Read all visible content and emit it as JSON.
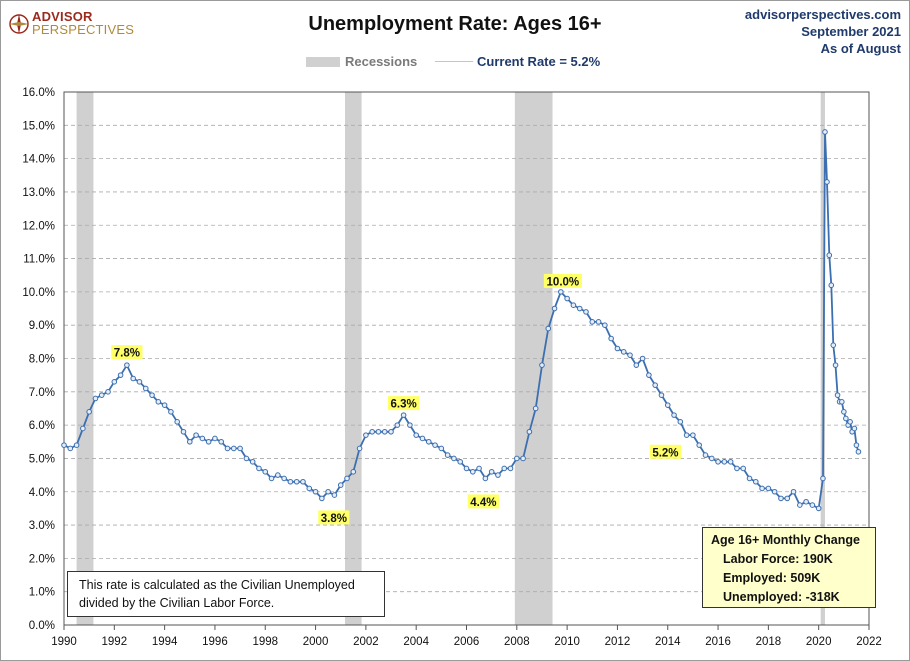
{
  "header": {
    "title": "Unemployment Rate: Ages 16+",
    "logo_line1": "ADVISOR",
    "logo_line2": "PERSPECTIVES",
    "site": "advisorperspectives.com",
    "date": "September 2021",
    "as_of": "As of August"
  },
  "legend": {
    "recessions_label": "Recessions",
    "current_label": "Current Rate = 5.2%"
  },
  "note": {
    "line1": "This rate is calculated as the Civilian Unemployed",
    "line2": "divided by the Civilian Labor Force."
  },
  "change_box": {
    "title": "Age 16+ Monthly Change",
    "labor_force": "Labor Force:  190K",
    "employed": "Employed:  509K",
    "unemployed": "Unemployed:  -318K"
  },
  "colors": {
    "line": "#3c6fb0",
    "marker_fill": "#e6eef8",
    "recession": "#d0d0d0",
    "annotation_bg": "#ffff66",
    "title_blue": "#1f3a6b"
  },
  "chart_data": {
    "type": "line",
    "title": "Unemployment Rate: Ages 16+",
    "xlim": [
      1990,
      2022
    ],
    "ylim": [
      0,
      16
    ],
    "x_ticks": [
      1990,
      1992,
      1994,
      1996,
      1998,
      2000,
      2002,
      2004,
      2006,
      2008,
      2010,
      2012,
      2014,
      2016,
      2018,
      2020,
      2022
    ],
    "y_ticks": [
      "0.0%",
      "1.0%",
      "2.0%",
      "3.0%",
      "4.0%",
      "5.0%",
      "6.0%",
      "7.0%",
      "8.0%",
      "9.0%",
      "10.0%",
      "11.0%",
      "12.0%",
      "13.0%",
      "14.0%",
      "15.0%",
      "16.0%"
    ],
    "grid": true,
    "recessions": [
      [
        1990.5,
        1991.17
      ],
      [
        2001.17,
        2001.83
      ],
      [
        2007.92,
        2009.42
      ],
      [
        2020.08,
        2020.25
      ]
    ],
    "series": [
      {
        "name": "Current Rate = 5.2%",
        "points": [
          [
            1990.0,
            5.4
          ],
          [
            1990.25,
            5.3
          ],
          [
            1990.5,
            5.4
          ],
          [
            1990.75,
            5.9
          ],
          [
            1991.0,
            6.4
          ],
          [
            1991.25,
            6.8
          ],
          [
            1991.5,
            6.9
          ],
          [
            1991.75,
            7.0
          ],
          [
            1992.0,
            7.3
          ],
          [
            1992.25,
            7.5
          ],
          [
            1992.5,
            7.8
          ],
          [
            1992.75,
            7.4
          ],
          [
            1993.0,
            7.3
          ],
          [
            1993.25,
            7.1
          ],
          [
            1993.5,
            6.9
          ],
          [
            1993.75,
            6.7
          ],
          [
            1994.0,
            6.6
          ],
          [
            1994.25,
            6.4
          ],
          [
            1994.5,
            6.1
          ],
          [
            1994.75,
            5.8
          ],
          [
            1995.0,
            5.5
          ],
          [
            1995.25,
            5.7
          ],
          [
            1995.5,
            5.6
          ],
          [
            1995.75,
            5.5
          ],
          [
            1996.0,
            5.6
          ],
          [
            1996.25,
            5.5
          ],
          [
            1996.5,
            5.3
          ],
          [
            1996.75,
            5.3
          ],
          [
            1997.0,
            5.3
          ],
          [
            1997.25,
            5.0
          ],
          [
            1997.5,
            4.9
          ],
          [
            1997.75,
            4.7
          ],
          [
            1998.0,
            4.6
          ],
          [
            1998.25,
            4.4
          ],
          [
            1998.5,
            4.5
          ],
          [
            1998.75,
            4.4
          ],
          [
            1999.0,
            4.3
          ],
          [
            1999.25,
            4.3
          ],
          [
            1999.5,
            4.3
          ],
          [
            1999.75,
            4.1
          ],
          [
            2000.0,
            4.0
          ],
          [
            2000.25,
            3.8
          ],
          [
            2000.5,
            4.0
          ],
          [
            2000.75,
            3.9
          ],
          [
            2001.0,
            4.2
          ],
          [
            2001.25,
            4.4
          ],
          [
            2001.5,
            4.6
          ],
          [
            2001.75,
            5.3
          ],
          [
            2002.0,
            5.7
          ],
          [
            2002.25,
            5.8
          ],
          [
            2002.5,
            5.8
          ],
          [
            2002.75,
            5.8
          ],
          [
            2003.0,
            5.8
          ],
          [
            2003.25,
            6.0
          ],
          [
            2003.5,
            6.3
          ],
          [
            2003.75,
            6.0
          ],
          [
            2004.0,
            5.7
          ],
          [
            2004.25,
            5.6
          ],
          [
            2004.5,
            5.5
          ],
          [
            2004.75,
            5.4
          ],
          [
            2005.0,
            5.3
          ],
          [
            2005.25,
            5.1
          ],
          [
            2005.5,
            5.0
          ],
          [
            2005.75,
            4.9
          ],
          [
            2006.0,
            4.7
          ],
          [
            2006.25,
            4.6
          ],
          [
            2006.5,
            4.7
          ],
          [
            2006.75,
            4.4
          ],
          [
            2007.0,
            4.6
          ],
          [
            2007.25,
            4.5
          ],
          [
            2007.5,
            4.7
          ],
          [
            2007.75,
            4.7
          ],
          [
            2008.0,
            5.0
          ],
          [
            2008.25,
            5.0
          ],
          [
            2008.5,
            5.8
          ],
          [
            2008.75,
            6.5
          ],
          [
            2009.0,
            7.8
          ],
          [
            2009.25,
            8.9
          ],
          [
            2009.5,
            9.5
          ],
          [
            2009.75,
            10.0
          ],
          [
            2010.0,
            9.8
          ],
          [
            2010.25,
            9.6
          ],
          [
            2010.5,
            9.5
          ],
          [
            2010.75,
            9.4
          ],
          [
            2011.0,
            9.1
          ],
          [
            2011.25,
            9.1
          ],
          [
            2011.5,
            9.0
          ],
          [
            2011.75,
            8.6
          ],
          [
            2012.0,
            8.3
          ],
          [
            2012.25,
            8.2
          ],
          [
            2012.5,
            8.1
          ],
          [
            2012.75,
            7.8
          ],
          [
            2013.0,
            8.0
          ],
          [
            2013.25,
            7.5
          ],
          [
            2013.5,
            7.2
          ],
          [
            2013.75,
            6.9
          ],
          [
            2014.0,
            6.6
          ],
          [
            2014.25,
            6.3
          ],
          [
            2014.5,
            6.1
          ],
          [
            2014.75,
            5.7
          ],
          [
            2015.0,
            5.7
          ],
          [
            2015.25,
            5.4
          ],
          [
            2015.5,
            5.1
          ],
          [
            2015.75,
            5.0
          ],
          [
            2016.0,
            4.9
          ],
          [
            2016.25,
            4.9
          ],
          [
            2016.5,
            4.9
          ],
          [
            2016.75,
            4.7
          ],
          [
            2017.0,
            4.7
          ],
          [
            2017.25,
            4.4
          ],
          [
            2017.5,
            4.3
          ],
          [
            2017.75,
            4.1
          ],
          [
            2018.0,
            4.1
          ],
          [
            2018.25,
            4.0
          ],
          [
            2018.5,
            3.8
          ],
          [
            2018.75,
            3.8
          ],
          [
            2019.0,
            4.0
          ],
          [
            2019.25,
            3.6
          ],
          [
            2019.5,
            3.7
          ],
          [
            2019.75,
            3.6
          ],
          [
            2020.0,
            3.5
          ],
          [
            2020.17,
            4.4
          ],
          [
            2020.25,
            14.8
          ],
          [
            2020.33,
            13.3
          ],
          [
            2020.42,
            11.1
          ],
          [
            2020.5,
            10.2
          ],
          [
            2020.58,
            8.4
          ],
          [
            2020.67,
            7.8
          ],
          [
            2020.75,
            6.9
          ],
          [
            2020.83,
            6.7
          ],
          [
            2020.92,
            6.7
          ],
          [
            2021.0,
            6.4
          ],
          [
            2021.08,
            6.2
          ],
          [
            2021.17,
            6.0
          ],
          [
            2021.25,
            6.1
          ],
          [
            2021.33,
            5.8
          ],
          [
            2021.42,
            5.9
          ],
          [
            2021.5,
            5.4
          ],
          [
            2021.58,
            5.2
          ]
        ]
      }
    ],
    "annotations": [
      {
        "label": "7.8%",
        "x": 1992.5,
        "y": 7.8
      },
      {
        "label": "3.8%",
        "x": 2000.25,
        "y": 3.8
      },
      {
        "label": "6.3%",
        "x": 2003.5,
        "y": 6.3
      },
      {
        "label": "4.4%",
        "x": 2006.75,
        "y": 4.4
      },
      {
        "label": "10.0%",
        "x": 2009.75,
        "y": 10.0
      },
      {
        "label": "5.2%",
        "x": 2021.58,
        "y": 5.2
      }
    ]
  }
}
